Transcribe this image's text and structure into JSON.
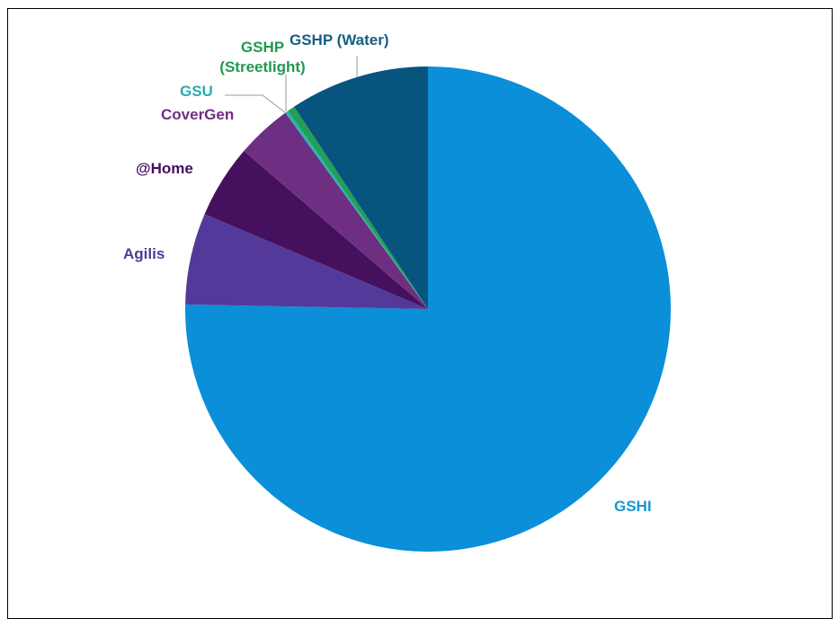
{
  "chart_data": {
    "type": "pie",
    "title": "",
    "start_angle_deg": 0,
    "direction": "clockwise",
    "slices": [
      {
        "label": "GSHI",
        "value": 75.3,
        "color": "#0a8fd8",
        "label_color": "#1a96d4"
      },
      {
        "label": "Agilis",
        "value": 6.1,
        "color": "#533a9a",
        "label_color": "#52399a"
      },
      {
        "label": "@Home",
        "value": 4.9,
        "color": "#45105d",
        "label_color": "#45105d"
      },
      {
        "label": "CoverGen",
        "value": 3.7,
        "color": "#6e2f82",
        "label_color": "#6e2f82"
      },
      {
        "label": "GSU",
        "value": 0.2,
        "color": "#2bb2b8",
        "label_color": "#2cabb2"
      },
      {
        "label": "GSHP\n(Streetlight)",
        "value": 0.5,
        "color": "#21a055",
        "label_color": "#1f9a4f"
      },
      {
        "label": "GSHP (Water)",
        "value": 9.3,
        "color": "#07557f",
        "label_color": "#175f80"
      }
    ],
    "legend": "none"
  }
}
